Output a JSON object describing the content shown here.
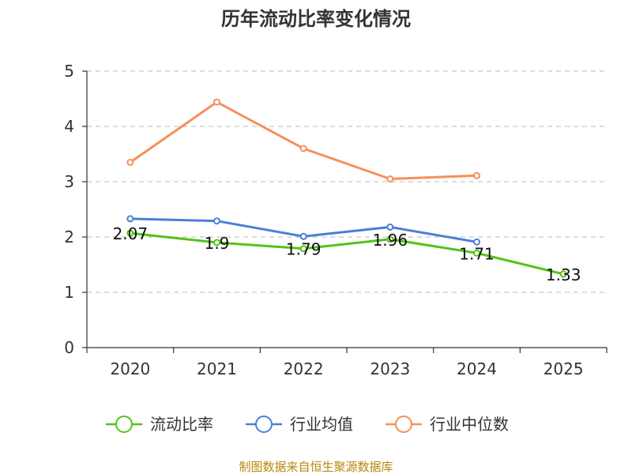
{
  "chart_data": {
    "type": "line",
    "title": "历年流动比率变化情况",
    "categories": [
      "2020",
      "2021",
      "2022",
      "2023",
      "2024",
      "2025"
    ],
    "ylim": [
      0,
      5
    ],
    "yticks": [
      0,
      1,
      2,
      3,
      4,
      5
    ],
    "grid": true,
    "legend_position": "bottom",
    "series": [
      {
        "name": "流动比率",
        "color": "#52c41a",
        "values": [
          2.07,
          1.9,
          1.79,
          1.96,
          1.71,
          1.33
        ],
        "labels": [
          "2.07",
          "1.9",
          "1.79",
          "1.96",
          "1.71",
          "1.33"
        ]
      },
      {
        "name": "行业均值",
        "color": "#4a7fd6",
        "values": [
          2.33,
          2.29,
          2.01,
          2.18,
          1.91,
          null
        ]
      },
      {
        "name": "行业中位数",
        "color": "#f5905a",
        "values": [
          3.35,
          4.44,
          3.6,
          3.05,
          3.11,
          null
        ]
      }
    ],
    "source": "制图数据来自恒生聚源数据库"
  }
}
